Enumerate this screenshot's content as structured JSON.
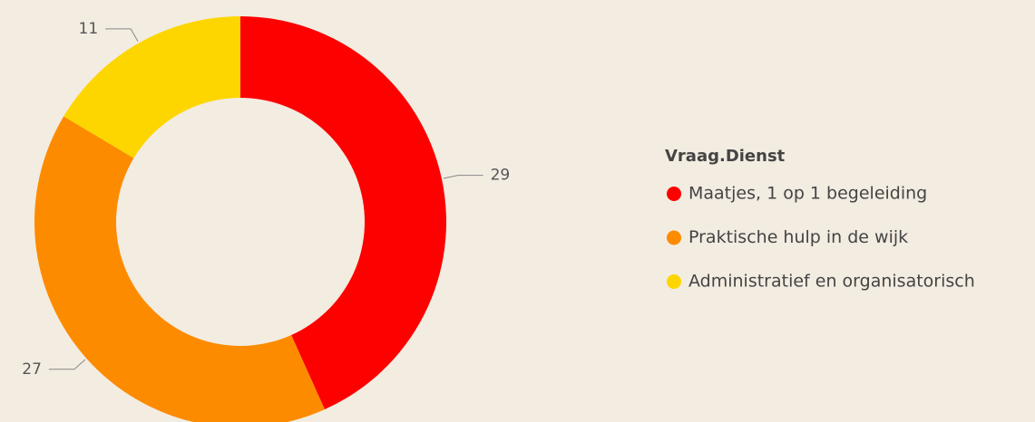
{
  "chart_data": {
    "type": "pie",
    "legend_title": "Vraag.Dienst",
    "categories": [
      "Maatjes, 1 op 1 begeleiding",
      "Praktische hulp in de wijk",
      "Administratief en organisatorisch"
    ],
    "values": [
      29,
      27,
      11
    ],
    "colors": [
      "#fd0000",
      "#fd8b00",
      "#fdd600"
    ],
    "legend": "right"
  }
}
